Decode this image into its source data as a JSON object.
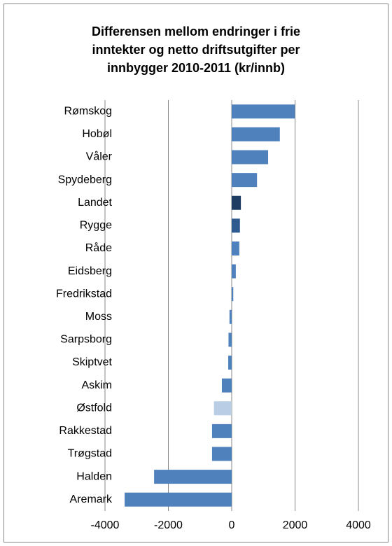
{
  "chart_data": {
    "type": "barh",
    "title": [
      "Differensen mellom endringer i frie",
      "inntekter og netto driftsutgifter per",
      "innbygger 2010-2011 (kr/innb)"
    ],
    "categories": [
      "Rømskog",
      "Hobøl",
      "Våler ",
      "Spydeberg",
      "Landet",
      "Rygge",
      "Råde",
      "Eidsberg",
      "Fredrikstad",
      "Moss",
      "Sarpsborg",
      "Skiptvet",
      "Askim",
      "Østfold",
      "Rakkestad",
      "Trøgstad",
      "Halden",
      "Aremark"
    ],
    "values": [
      2000,
      1520,
      1150,
      800,
      290,
      260,
      240,
      130,
      50,
      -70,
      -100,
      -110,
      -310,
      -560,
      -620,
      -620,
      -2450,
      -3380
    ],
    "colors": [
      "#4f81bd",
      "#4f81bd",
      "#4f81bd",
      "#4f81bd",
      "#1f3d63",
      "#2f5a8f",
      "#4f81bd",
      "#4f81bd",
      "#4f81bd",
      "#4f81bd",
      "#4f81bd",
      "#4f81bd",
      "#4f81bd",
      "#b9cde5",
      "#4f81bd",
      "#4f81bd",
      "#4f81bd",
      "#4f81bd"
    ],
    "xlim": [
      -4000,
      4000
    ],
    "xticks": [
      -4000,
      -2000,
      0,
      2000,
      4000
    ],
    "grid": true
  }
}
